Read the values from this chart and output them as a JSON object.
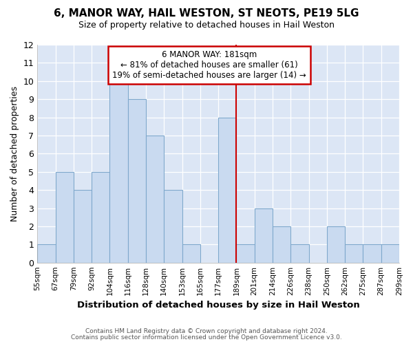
{
  "title": "6, MANOR WAY, HAIL WESTON, ST NEOTS, PE19 5LG",
  "subtitle": "Size of property relative to detached houses in Hail Weston",
  "xlabel": "Distribution of detached houses by size in Hail Weston",
  "ylabel": "Number of detached properties",
  "bin_labels": [
    "55sqm",
    "67sqm",
    "79sqm",
    "92sqm",
    "104sqm",
    "116sqm",
    "128sqm",
    "140sqm",
    "153sqm",
    "165sqm",
    "177sqm",
    "189sqm",
    "201sqm",
    "214sqm",
    "226sqm",
    "238sqm",
    "250sqm",
    "262sqm",
    "275sqm",
    "287sqm",
    "299sqm"
  ],
  "bar_heights": [
    1,
    5,
    4,
    5,
    10,
    9,
    7,
    4,
    1,
    0,
    8,
    1,
    3,
    2,
    1,
    0,
    2,
    1,
    1,
    1,
    0
  ],
  "bar_color": "#c9daf0",
  "bar_edge_color": "#7fa8cc",
  "vline_x_index": 10,
  "vline_color": "#cc0000",
  "annotation_title": "6 MANOR WAY: 181sqm",
  "annotation_line1": "← 81% of detached houses are smaller (61)",
  "annotation_line2": "19% of semi-detached houses are larger (14) →",
  "annotation_box_color": "#ffffff",
  "annotation_box_edge": "#cc0000",
  "ylim": [
    0,
    12
  ],
  "footer1": "Contains HM Land Registry data © Crown copyright and database right 2024.",
  "footer2": "Contains public sector information licensed under the Open Government Licence v3.0.",
  "plot_bg_color": "#dce6f5",
  "fig_bg_color": "#ffffff",
  "grid_color": "#ffffff"
}
